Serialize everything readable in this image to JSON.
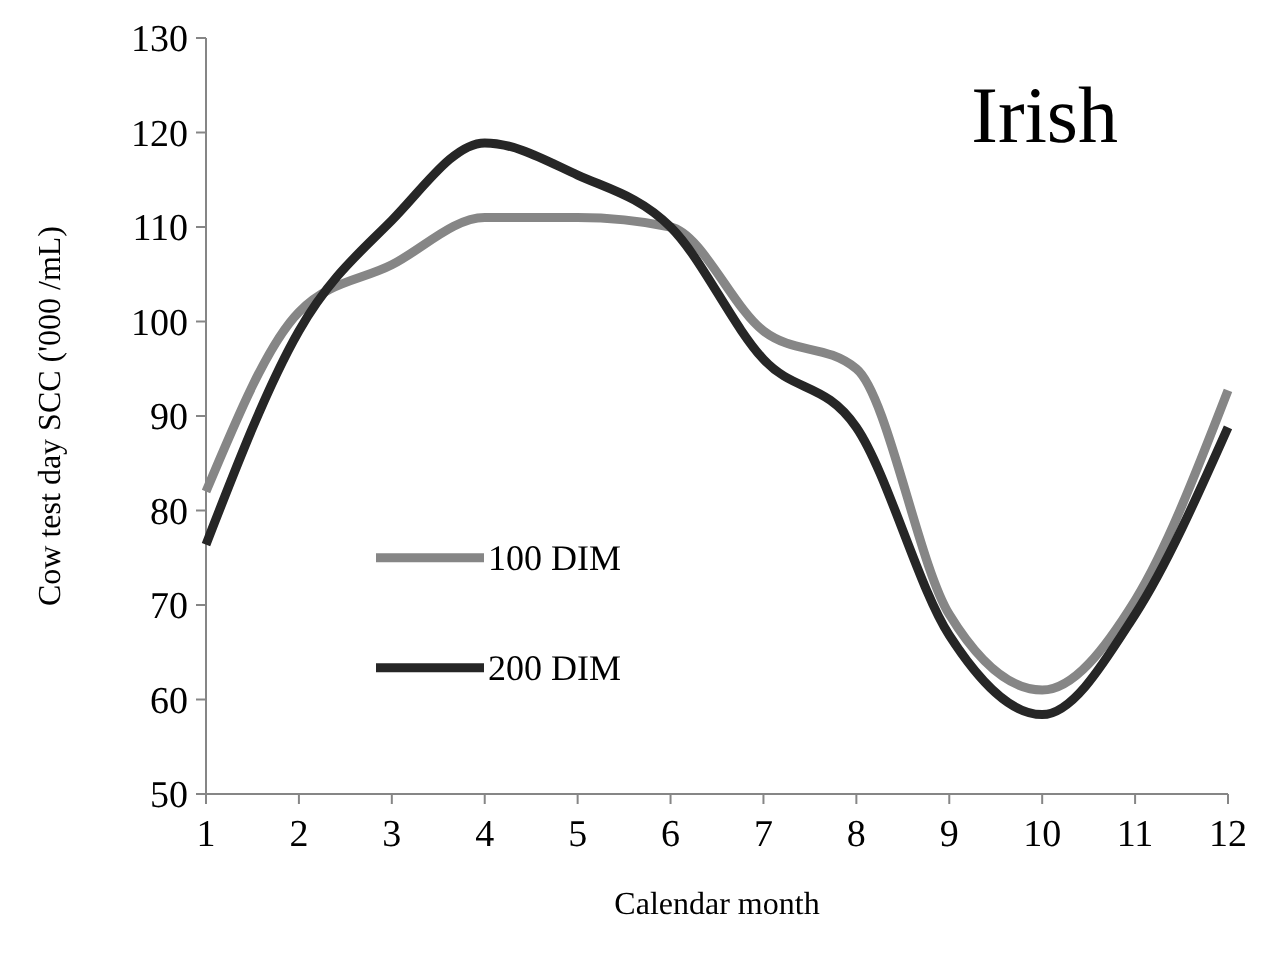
{
  "chart_data": {
    "type": "line",
    "title": "Irish",
    "xlabel": "Calendar month",
    "ylabel": "Cow test day SCC ('000 /mL)",
    "x": [
      1,
      2,
      3,
      4,
      5,
      6,
      7,
      8,
      9,
      10,
      11,
      12
    ],
    "series": [
      {
        "name": "100 DIM",
        "color": "#868686",
        "values": [
          82,
          101,
          106,
          111,
          111,
          110,
          99,
          95,
          69,
          61,
          70.5,
          92.7
        ]
      },
      {
        "name": "200 DIM",
        "color": "#262626",
        "values": [
          76.4,
          99,
          110.7,
          118.9,
          115.5,
          110,
          96,
          88.8,
          66.8,
          58.4,
          69,
          88.8
        ]
      }
    ],
    "xlim": [
      1,
      12
    ],
    "xticks": [
      1,
      2,
      3,
      4,
      5,
      6,
      7,
      8,
      9,
      10,
      11,
      12
    ],
    "ylim": [
      50,
      130
    ],
    "yticks": [
      50,
      60,
      70,
      80,
      90,
      100,
      110,
      120,
      130
    ],
    "grid": false,
    "legend": "left",
    "marker": "none",
    "line_style": "solid"
  }
}
